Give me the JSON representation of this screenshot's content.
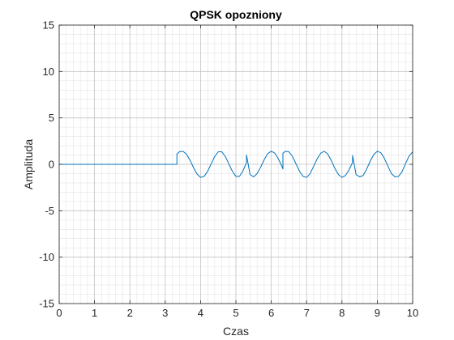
{
  "chart_data": {
    "type": "line",
    "title": "QPSK opozniony",
    "xlabel": "Czas",
    "ylabel": "Amplituda",
    "xlim": [
      0,
      10
    ],
    "ylim": [
      -15,
      15
    ],
    "xticks": [
      0,
      1,
      2,
      3,
      4,
      5,
      6,
      7,
      8,
      9,
      10
    ],
    "xtick_labels": [
      "0",
      "1",
      "2",
      "3",
      "4",
      "5",
      "6",
      "7",
      "8",
      "9",
      "10"
    ],
    "yticks": [
      -15,
      -10,
      -5,
      0,
      5,
      10,
      15
    ],
    "ytick_labels": [
      "-15",
      "-10",
      "-5",
      "0",
      "5",
      "10",
      "15"
    ],
    "grid": true,
    "minor_grid": true,
    "line_color": "#0072BD",
    "series": [
      {
        "x": [
          0,
          3.33,
          3.33,
          3.4,
          3.5,
          3.6,
          3.7,
          3.8,
          3.9,
          4.0,
          4.1,
          4.2,
          4.3,
          4.4,
          4.5,
          4.6,
          4.7,
          4.8,
          4.9,
          5.0,
          5.1,
          5.2,
          5.3,
          5.3,
          5.4,
          5.5,
          5.6,
          5.7,
          5.8,
          5.9,
          6.0,
          6.1,
          6.2,
          6.3,
          6.33,
          6.33,
          6.4,
          6.5,
          6.6,
          6.7,
          6.8,
          6.9,
          7.0,
          7.1,
          7.2,
          7.3,
          7.4,
          7.5,
          7.6,
          7.7,
          7.8,
          7.9,
          8.0,
          8.1,
          8.2,
          8.3,
          8.3,
          8.4,
          8.5,
          8.6,
          8.7,
          8.8,
          8.9,
          9.0,
          9.1,
          9.2,
          9.3,
          9.4,
          9.5,
          9.6,
          9.7,
          9.8,
          9.9,
          10.0
        ],
        "y": [
          0,
          0,
          1.1,
          1.35,
          1.41,
          1.1,
          0.45,
          -0.35,
          -1.05,
          -1.41,
          -1.3,
          -0.75,
          0.05,
          0.85,
          1.35,
          1.35,
          0.85,
          0.05,
          -0.75,
          -1.3,
          -1.3,
          -0.7,
          0.2,
          1.0,
          -1.1,
          -1.35,
          -1.0,
          -0.3,
          0.5,
          1.15,
          1.41,
          1.2,
          0.6,
          -0.2,
          -0.5,
          1.2,
          1.41,
          1.35,
          0.85,
          0.05,
          -0.75,
          -1.3,
          -1.41,
          -1.0,
          -0.2,
          0.6,
          1.2,
          1.41,
          1.1,
          0.4,
          -0.45,
          -1.1,
          -1.41,
          -1.2,
          -0.6,
          0.2,
          0.95,
          -1.1,
          -1.35,
          -1.2,
          -0.5,
          0.35,
          1.05,
          1.41,
          1.25,
          0.65,
          -0.2,
          -1.0,
          -1.35,
          -1.3,
          -0.8,
          0.1,
          0.9,
          1.35
        ]
      }
    ]
  }
}
